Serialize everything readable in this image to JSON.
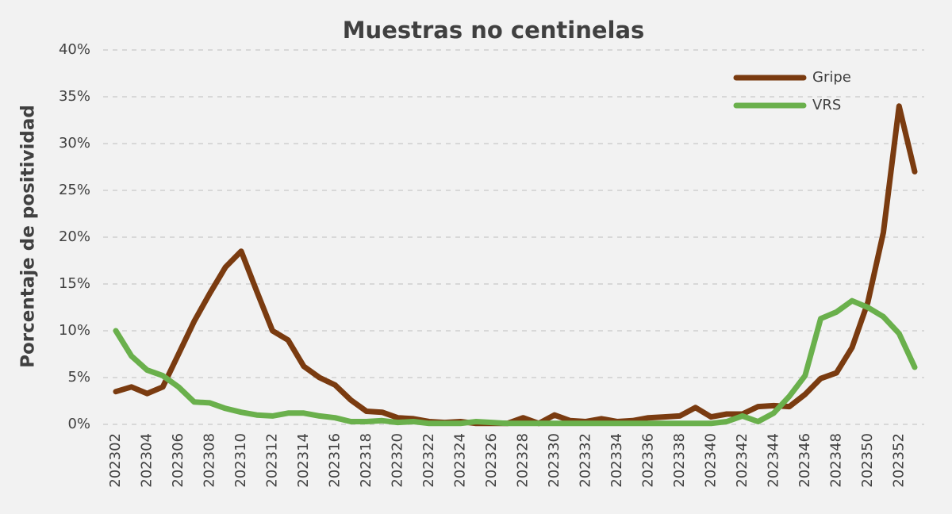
{
  "chart_data": {
    "type": "line",
    "title": "Muestras no centinelas",
    "y_label": "Porcentaje de positividad",
    "categories": [
      "202302",
      null,
      "202304",
      null,
      "202306",
      null,
      "202308",
      null,
      "202310",
      null,
      "202312",
      null,
      "202314",
      null,
      "202316",
      null,
      "202318",
      null,
      "202320",
      null,
      "202322",
      null,
      "202324",
      null,
      "202326",
      null,
      "202328",
      null,
      "202330",
      null,
      "202332",
      null,
      "202334",
      null,
      "202336",
      null,
      "202338",
      null,
      "202340",
      null,
      "202342",
      null,
      "202344",
      null,
      "202346",
      null,
      "202348",
      null,
      "202350",
      null,
      "202352",
      null
    ],
    "series": [
      {
        "name": "Gripe",
        "color": "#7a3b10",
        "values": [
          3.5,
          4.0,
          3.3,
          4.0,
          7.5,
          11,
          14,
          16.8,
          18.5,
          14.2,
          10,
          9,
          6.2,
          5,
          4.2,
          2.6,
          1.4,
          1.3,
          0.7,
          0.6,
          0.3,
          0.2,
          0.3,
          0.1,
          0.1,
          0.1,
          0.7,
          0.1,
          1.0,
          0.4,
          0.3,
          0.6,
          0.3,
          0.4,
          0.7,
          0.8,
          0.9,
          1.8,
          0.8,
          1.1,
          1.1,
          1.9,
          2.0,
          1.9,
          3.2,
          4.9,
          5.5,
          8.2,
          13,
          20.5,
          34,
          27
        ]
      },
      {
        "name": "VRS",
        "color": "#6ab04c",
        "values": [
          10,
          7.3,
          5.8,
          5.2,
          4.0,
          2.4,
          2.3,
          1.7,
          1.3,
          1.0,
          0.9,
          1.2,
          1.2,
          0.9,
          0.7,
          0.3,
          0.3,
          0.4,
          0.2,
          0.3,
          0.1,
          0.1,
          0.1,
          0.3,
          0.2,
          0.1,
          0.1,
          0.1,
          0.1,
          0.1,
          0.1,
          0.1,
          0.1,
          0.1,
          0.1,
          0.1,
          0.1,
          0.1,
          0.1,
          0.3,
          0.9,
          0.3,
          1.2,
          3.0,
          5.2,
          11.3,
          12,
          13.2,
          12.5,
          11.5,
          9.7,
          6.1
        ]
      }
    ],
    "ylim": [
      0,
      40
    ],
    "yticks": [
      {
        "value": 0,
        "label": "0%"
      },
      {
        "value": 5,
        "label": "5%"
      },
      {
        "value": 10,
        "label": "10%"
      },
      {
        "value": 15,
        "label": "15%"
      },
      {
        "value": 20,
        "label": "20%"
      },
      {
        "value": 25,
        "label": "25%"
      },
      {
        "value": 30,
        "label": "30%"
      },
      {
        "value": 35,
        "label": "35%"
      },
      {
        "value": 40,
        "label": "40%"
      }
    ],
    "grid": true,
    "legend": "top-right"
  }
}
